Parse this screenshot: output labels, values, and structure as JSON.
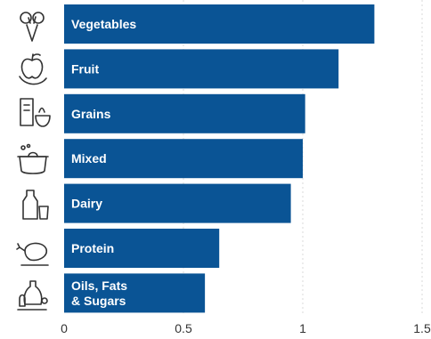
{
  "chart_data": {
    "type": "bar",
    "orientation": "horizontal",
    "categories": [
      {
        "label": "Vegetables",
        "icon": "vegetables-icon"
      },
      {
        "label": "Fruit",
        "icon": "fruit-icon"
      },
      {
        "label": "Grains",
        "icon": "grains-icon"
      },
      {
        "label": "Mixed",
        "icon": "mixed-dish-icon"
      },
      {
        "label": "Dairy",
        "icon": "dairy-icon"
      },
      {
        "label": "Protein",
        "icon": "protein-icon"
      },
      {
        "label": "Oils, Fats\n& Sugars",
        "icon": "oils-fats-sugars-icon"
      }
    ],
    "values": [
      1.3,
      1.15,
      1.01,
      1.0,
      0.95,
      0.65,
      0.59
    ],
    "xlim": [
      0,
      1.5
    ],
    "xticks": [
      0,
      0.5,
      1,
      1.5
    ],
    "xtick_labels": [
      "0",
      "0.5",
      "1",
      "1.5"
    ],
    "grid": true,
    "bar_color": "#0a5495",
    "title": "",
    "xlabel": "",
    "ylabel": ""
  }
}
